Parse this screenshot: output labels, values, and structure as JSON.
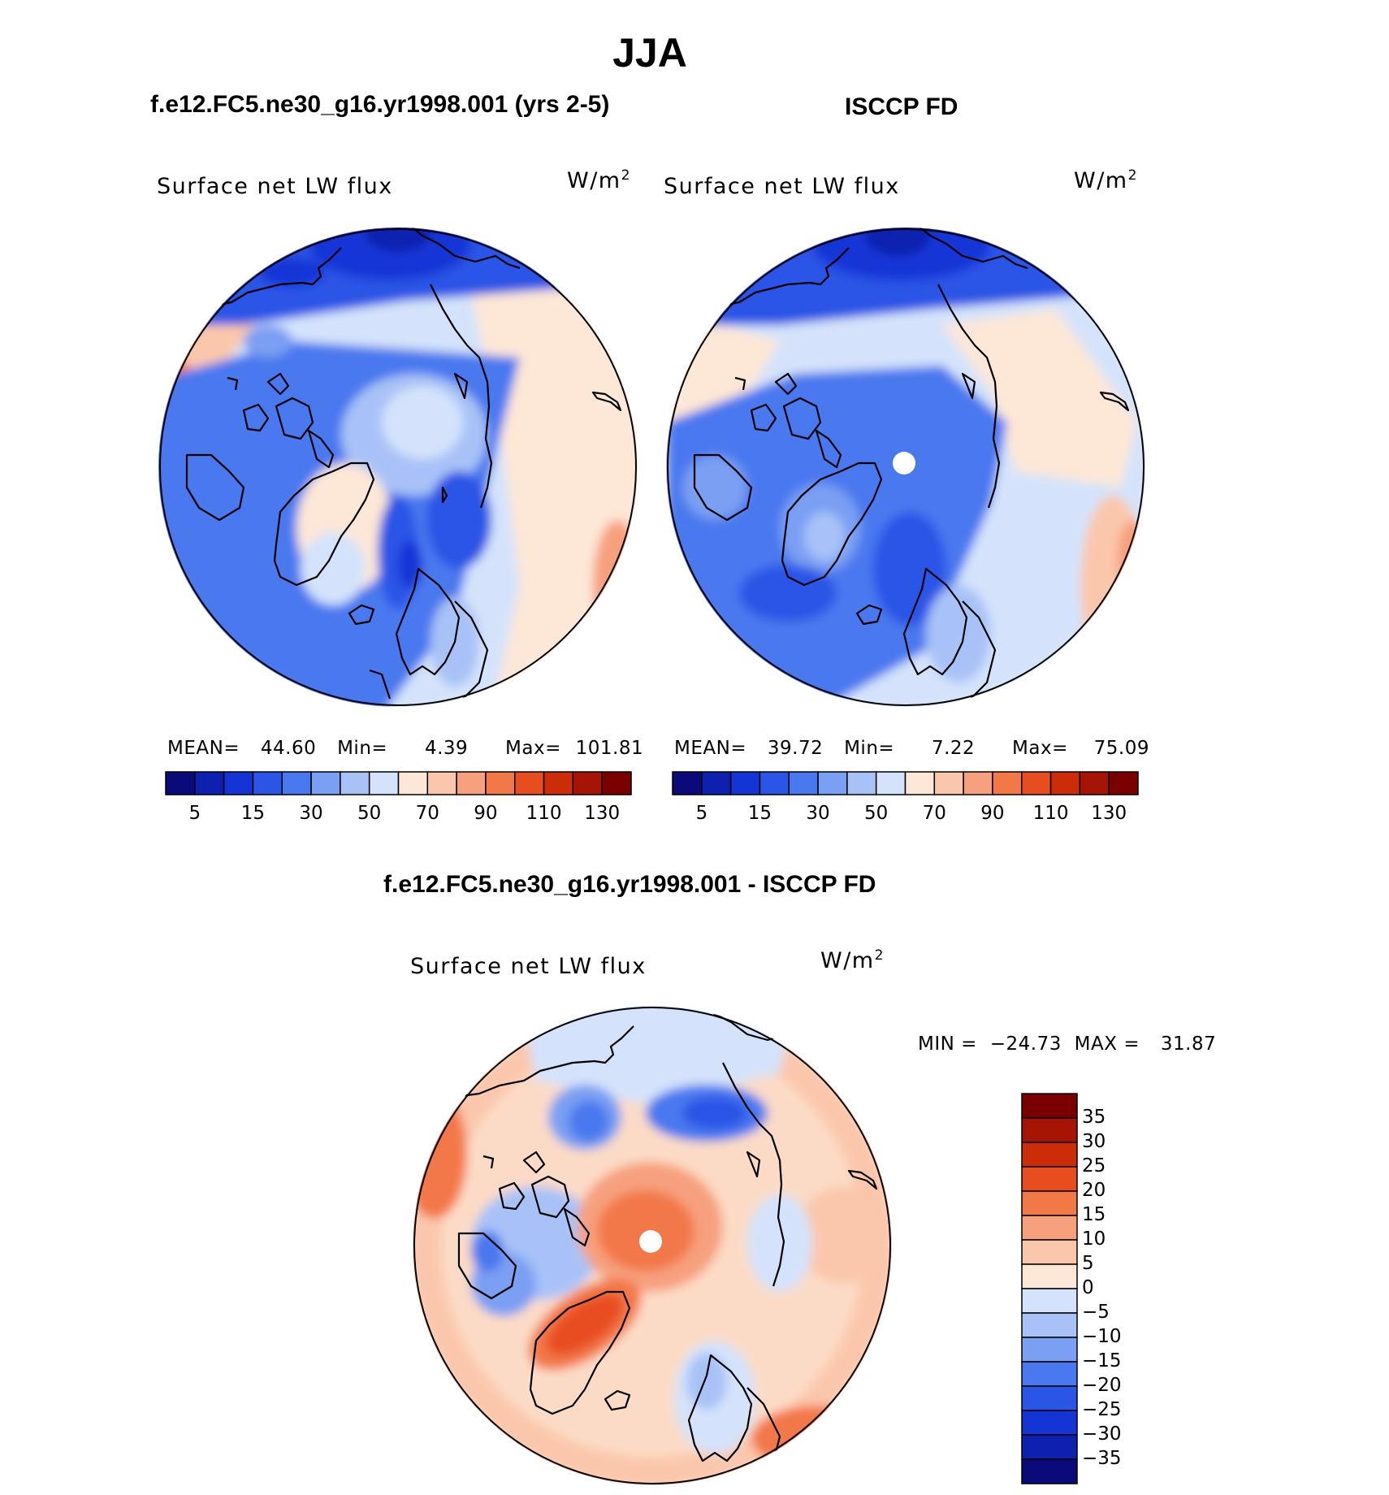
{
  "figure": {
    "title": "JJA",
    "panel1_title": "f.e12.FC5.ne30_g16.yr1998.001 (yrs 2-5)",
    "panel2_title": "ISCCP FD",
    "panel3_title": "f.e12.FC5.ne30_g16.yr1998.001 - ISCCP FD"
  },
  "chart_data": [
    {
      "type": "heatmap",
      "projection": "north polar stereographic",
      "variable": "Surface net LW flux",
      "units": "W/m2",
      "stats": {
        "mean_label": "MEAN=",
        "mean": "44.60",
        "min_label": "Min=",
        "min": "4.39",
        "max_label": "Max=",
        "max": "101.81"
      },
      "colorbar_levels": [
        0,
        5,
        10,
        15,
        20,
        30,
        40,
        50,
        60,
        70,
        80,
        90,
        100,
        110,
        120,
        130,
        140
      ],
      "colorbar_tick_labels": [
        "5",
        "15",
        "30",
        "50",
        "70",
        "90",
        "110",
        "130"
      ],
      "colors": [
        "#0a0a7a",
        "#0e20b0",
        "#1534d6",
        "#2a55e6",
        "#4a78ef",
        "#7a9ff3",
        "#a8c2f7",
        "#d4e3fb",
        "#fde7d7",
        "#fbc7ac",
        "#f7a07e",
        "#f37848",
        "#e84d20",
        "#cc2d08",
        "#a51404",
        "#7a0000"
      ]
    },
    {
      "type": "heatmap",
      "projection": "north polar stereographic",
      "variable": "Surface net LW flux",
      "units": "W/m2",
      "stats": {
        "mean_label": "MEAN=",
        "mean": "39.72",
        "min_label": "Min=",
        "min": "7.22",
        "max_label": "Max=",
        "max": "75.09"
      },
      "colorbar_levels": [
        0,
        5,
        10,
        15,
        20,
        30,
        40,
        50,
        60,
        70,
        80,
        90,
        100,
        110,
        120,
        130,
        140
      ],
      "colorbar_tick_labels": [
        "5",
        "15",
        "30",
        "50",
        "70",
        "90",
        "110",
        "130"
      ],
      "colors": [
        "#0a0a7a",
        "#0e20b0",
        "#1534d6",
        "#2a55e6",
        "#4a78ef",
        "#7a9ff3",
        "#a8c2f7",
        "#d4e3fb",
        "#fde7d7",
        "#fbc7ac",
        "#f7a07e",
        "#f37848",
        "#e84d20",
        "#cc2d08",
        "#a51404",
        "#7a0000"
      ]
    },
    {
      "type": "heatmap",
      "projection": "north polar stereographic",
      "variable": "Surface net LW flux",
      "units": "W/m2",
      "stats": {
        "min_label": "MIN =",
        "min": "−24.73",
        "max_label": "MAX =",
        "max": "31.87"
      },
      "colorbar_tick_labels": [
        "35",
        "30",
        "25",
        "20",
        "15",
        "10",
        "5",
        "0",
        "−5",
        "−10",
        "−15",
        "−20",
        "−25",
        "−30",
        "−35"
      ],
      "colors_top_to_bottom": [
        "#7a0000",
        "#a51404",
        "#cc2d08",
        "#e84d20",
        "#f37848",
        "#f7a07e",
        "#fbc7ac",
        "#fde7d7",
        "#d4e3fb",
        "#a8c2f7",
        "#7a9ff3",
        "#4a78ef",
        "#2a55e6",
        "#1534d6",
        "#0e20b0",
        "#0a0a7a"
      ]
    }
  ]
}
